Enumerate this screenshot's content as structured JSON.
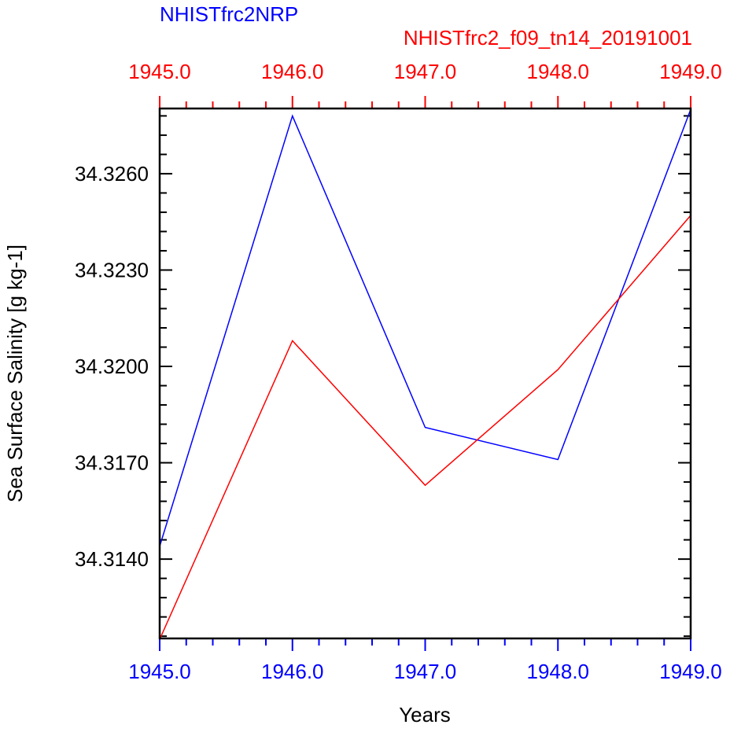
{
  "chart_data": {
    "type": "line",
    "title_series_1": "NHISTfrc2NRP",
    "title_series_2": "NHISTfrc2_f09_tn14_20191001",
    "xlabel": "Years",
    "ylabel": "Sea Surface Salinity [g kg-1]",
    "x": [
      1945,
      1946,
      1947,
      1948,
      1949
    ],
    "xlim": [
      1945,
      1949
    ],
    "ylim": [
      34.31153,
      34.32803
    ],
    "x_ticks": [
      "1945.0",
      "1946.0",
      "1947.0",
      "1948.0",
      "1949.0"
    ],
    "y_ticks": [
      "34.3140",
      "34.3170",
      "34.3200",
      "34.3230",
      "34.3260"
    ],
    "y_tick_values": [
      34.314,
      34.317,
      34.32,
      34.323,
      34.326
    ],
    "series": [
      {
        "name": "NHISTfrc2NRP",
        "color": "#0000ff",
        "values": [
          34.3144,
          34.3278,
          34.3181,
          34.3171,
          34.328
        ]
      },
      {
        "name": "NHISTfrc2_f09_tn14_20191001",
        "color": "#ff0000",
        "values": [
          34.3115,
          34.3208,
          34.3163,
          34.3199,
          34.3247
        ]
      }
    ],
    "bottom_axis_color": "#0000ff",
    "top_axis_color": "#ff0000",
    "grid": false
  }
}
